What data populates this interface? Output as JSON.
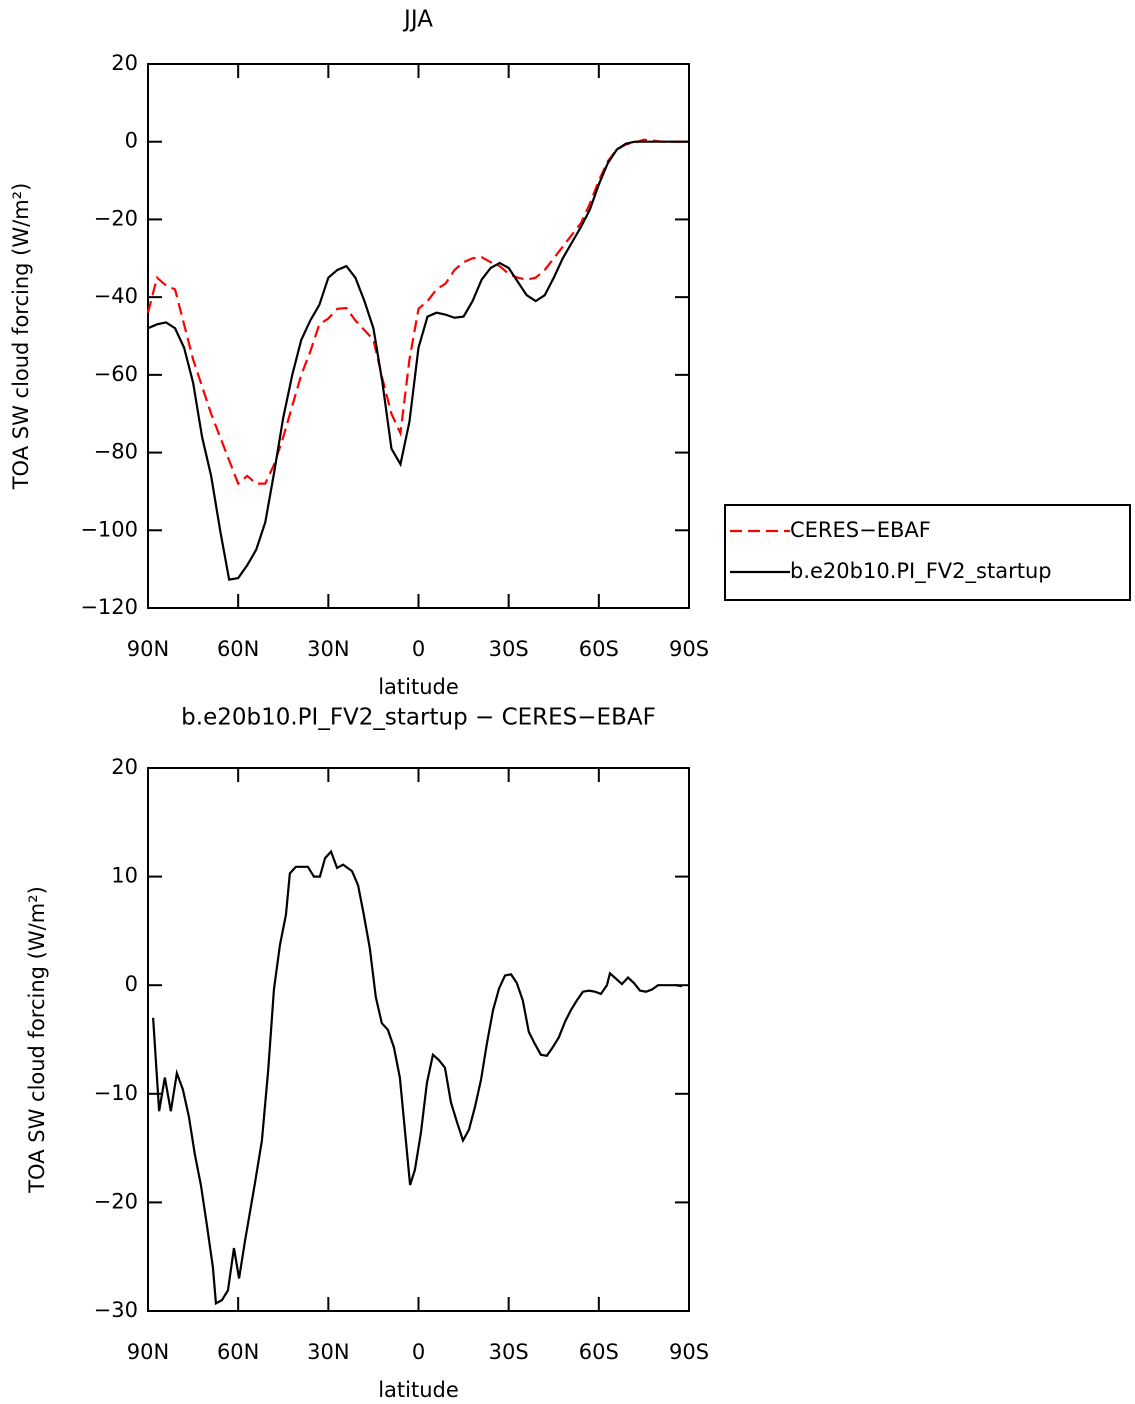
{
  "chart_data": [
    {
      "type": "line",
      "title": "JJA",
      "xlabel": "latitude",
      "ylabel": "TOA SW cloud forcing (W/m²)",
      "xlim": [
        90,
        -90
      ],
      "ylim": [
        -120,
        20
      ],
      "xticks": [
        {
          "value": 90,
          "label": "90N"
        },
        {
          "value": 60,
          "label": "60N"
        },
        {
          "value": 30,
          "label": "30N"
        },
        0,
        {
          "value": -30,
          "label": "30S"
        },
        {
          "value": -60,
          "label": "60S"
        },
        {
          "value": -90,
          "label": "90S"
        }
      ],
      "yticks": [
        20,
        0,
        {
          "value": -20,
          "label": "−20"
        },
        {
          "value": -40,
          "label": "−40"
        },
        {
          "value": -60,
          "label": "−60"
        },
        {
          "value": -80,
          "label": "−80"
        },
        {
          "value": -100,
          "label": "−100"
        },
        {
          "value": -120,
          "label": "−120"
        }
      ],
      "legend": "right",
      "x": [
        90,
        87,
        84,
        81,
        78,
        75,
        72,
        69,
        66,
        63,
        60,
        57,
        54,
        51,
        48,
        45,
        42,
        39,
        36,
        33,
        30,
        27,
        24,
        21,
        18,
        15,
        12,
        9,
        6,
        3,
        0,
        -3,
        -6,
        -9,
        -12,
        -15,
        -18,
        -21,
        -24,
        -27,
        -30,
        -33,
        -36,
        -39,
        -42,
        -45,
        -48,
        -51,
        -54,
        -57,
        -60,
        -63,
        -66,
        -69,
        -72,
        -75,
        -78,
        -81,
        -84,
        -87,
        -90
      ],
      "series": [
        {
          "name": "CERES−EBAF",
          "color": "#ff0000",
          "line_style": "dashed",
          "values": [
            -44,
            -35,
            -37,
            -38,
            -47,
            -56,
            -63,
            -70,
            -76,
            -82,
            -88,
            -86,
            -88,
            -88,
            -83,
            -76,
            -68,
            -60,
            -54,
            -47,
            -45.5,
            -43,
            -42.8,
            -46,
            -48.5,
            -51,
            -61,
            -70,
            -75,
            -56,
            -43,
            -41,
            -38,
            -36.5,
            -33,
            -31,
            -30,
            -29.7,
            -31,
            -32,
            -34,
            -35,
            -35.5,
            -35,
            -33,
            -30,
            -27,
            -24,
            -21,
            -16,
            -10,
            -5,
            -2,
            -0.7,
            -0.2,
            0.5,
            0.3,
            0,
            0,
            0,
            0
          ]
        },
        {
          "name": "b.e20b10.PI_FV2_startup",
          "color": "#000000",
          "line_style": "solid",
          "values": [
            -48,
            -47,
            -46.5,
            -48,
            -53,
            -62,
            -76,
            -86,
            -100,
            -112.7,
            -112.3,
            -109,
            -105,
            -98,
            -85,
            -71,
            -60,
            -51,
            -46,
            -42,
            -35,
            -33,
            -32,
            -35,
            -41,
            -48,
            -62,
            -79,
            -83,
            -72,
            -53,
            -45,
            -44,
            -44.5,
            -45.3,
            -45,
            -41,
            -35.5,
            -32.5,
            -31.2,
            -32.5,
            -36,
            -39.5,
            -41,
            -39.5,
            -35,
            -30,
            -26,
            -22,
            -17.5,
            -11,
            -5.5,
            -2,
            -0.5,
            0,
            0,
            0,
            0,
            0,
            0,
            0
          ]
        }
      ]
    },
    {
      "type": "line",
      "title": "b.e20b10.PI_FV2_startup − CERES−EBAF",
      "xlabel": "latitude",
      "ylabel": "TOA SW cloud forcing (W/m²)",
      "xlim": [
        90,
        -90
      ],
      "ylim": [
        -30,
        20
      ],
      "xticks": [
        {
          "value": 90,
          "label": "90N"
        },
        {
          "value": 60,
          "label": "60N"
        },
        {
          "value": 30,
          "label": "30N"
        },
        0,
        {
          "value": -30,
          "label": "30S"
        },
        {
          "value": -60,
          "label": "60S"
        },
        {
          "value": -90,
          "label": "90S"
        }
      ],
      "yticks": [
        20,
        10,
        0,
        {
          "value": -10,
          "label": "−10"
        },
        {
          "value": -20,
          "label": "−20"
        },
        {
          "value": -30,
          "label": "−30"
        }
      ],
      "x": [
        88.3,
        86.3,
        84.4,
        82.4,
        80.4,
        78.4,
        76.4,
        74.4,
        72.4,
        70.4,
        68.4,
        67.4,
        65.4,
        63.4,
        61.4,
        59.7,
        57.7,
        54.4,
        52.1,
        50,
        48.1,
        46.1,
        44.1,
        42.8,
        40.8,
        38.8,
        36.8,
        34.8,
        32.8,
        31.1,
        29.1,
        27.1,
        25.1,
        22.1,
        20.1,
        18.2,
        16.2,
        14.2,
        12.2,
        10.2,
        8.2,
        6.2,
        4.2,
        2.8,
        1.2,
        -0.8,
        -2.8,
        -4.8,
        -6.8,
        -8.8,
        -10.8,
        -12.8,
        -14.8,
        -16.8,
        -18.8,
        -20.8,
        -22.8,
        -24.8,
        -26.8,
        -28.8,
        -30.8,
        -32.7,
        -34.7,
        -36.7,
        -38.7,
        -40.7,
        -42.7,
        -44.7,
        -46.7,
        -48.7,
        -50.7,
        -52.7,
        -54.7,
        -56.7,
        -58.7,
        -60.7,
        -62.7,
        -63.7,
        -65.7,
        -67.7,
        -69.7,
        -71.7,
        -73.7,
        -75.7,
        -77.7,
        -79.7,
        -81.7,
        -83.7,
        -85.7,
        -87.7
      ],
      "series": [
        {
          "color": "#000000",
          "line_style": "solid",
          "values": [
            -3,
            -11.6,
            -8.5,
            -11.6,
            -8.1,
            -9.6,
            -12.1,
            -15.6,
            -18.4,
            -22.1,
            -26,
            -29.3,
            -29,
            -28.1,
            -24.2,
            -27,
            -23.5,
            -18.2,
            -14.3,
            -7.8,
            -0.4,
            3.7,
            6.5,
            10.3,
            10.9,
            10.9,
            10.9,
            10,
            10,
            11.7,
            12.3,
            10.8,
            11.1,
            10.5,
            9.2,
            6.5,
            3.4,
            -1.1,
            -3.5,
            -4.1,
            -5.7,
            -8.5,
            -14.3,
            -18.4,
            -17,
            -13.6,
            -9,
            -6.4,
            -6.9,
            -7.6,
            -10.8,
            -12.6,
            -14.3,
            -13.3,
            -11.2,
            -8.7,
            -5.3,
            -2.3,
            -0.3,
            0.9,
            1,
            0.2,
            -1.4,
            -4.3,
            -5.4,
            -6.4,
            -6.5,
            -5.7,
            -4.8,
            -3.4,
            -2.3,
            -1.4,
            -0.6,
            -0.5,
            -0.6,
            -0.8,
            0,
            1.1,
            0.6,
            0.1,
            0.7,
            0.2,
            -0.5,
            -0.6,
            -0.4,
            0,
            0,
            0,
            0,
            -0.1
          ]
        }
      ]
    }
  ]
}
